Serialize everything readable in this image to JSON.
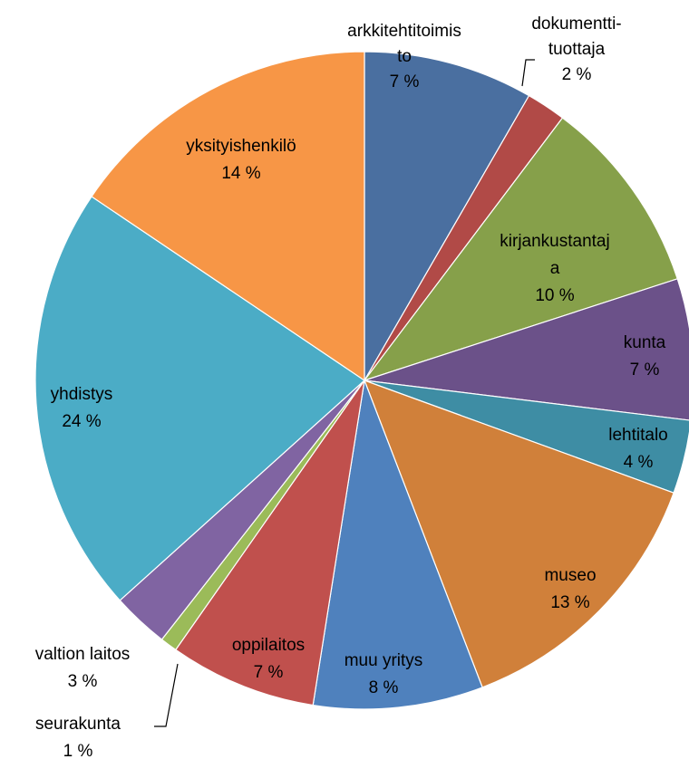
{
  "chart_data": {
    "type": "pie",
    "title": "",
    "slices": [
      {
        "label_lines": [
          "arkkitehtitoimis",
          "to"
        ],
        "pct_text": "7 %",
        "value": 7,
        "color": "#4a6fa0"
      },
      {
        "label_lines": [
          "dokumentti-",
          "tuottaja"
        ],
        "pct_text": "2 %",
        "value": 2,
        "color": "#b14a47"
      },
      {
        "label_lines": [
          "kirjankustantaj",
          "a"
        ],
        "pct_text": "10 %",
        "value": 10,
        "color": "#86a04a"
      },
      {
        "label_lines": [
          "kunta"
        ],
        "pct_text": "7 %",
        "value": 7,
        "color": "#6b5189"
      },
      {
        "label_lines": [
          "lehtitalo"
        ],
        "pct_text": "4 %",
        "value": 4,
        "color": "#3e8da4"
      },
      {
        "label_lines": [
          "museo"
        ],
        "pct_text": "13 %",
        "value": 13,
        "color": "#d0803a"
      },
      {
        "label_lines": [
          "muu yritys"
        ],
        "pct_text": "8 %",
        "value": 8,
        "color": "#4f81bd"
      },
      {
        "label_lines": [
          "oppilaitos"
        ],
        "pct_text": "7 %",
        "value": 7,
        "color": "#c0504d"
      },
      {
        "label_lines": [
          "seurakunta"
        ],
        "pct_text": "1 %",
        "value": 1,
        "color": "#9bbb59"
      },
      {
        "label_lines": [
          "valtion laitos"
        ],
        "pct_text": "3 %",
        "value": 3,
        "color": "#8064a2"
      },
      {
        "label_lines": [
          "yhdistys"
        ],
        "pct_text": "24 %",
        "value": 24,
        "color": "#4bacc6"
      },
      {
        "label_lines": [
          "yksityishenkilö"
        ],
        "pct_text": "14 %",
        "value": 14,
        "color": "#f79646"
      }
    ]
  }
}
